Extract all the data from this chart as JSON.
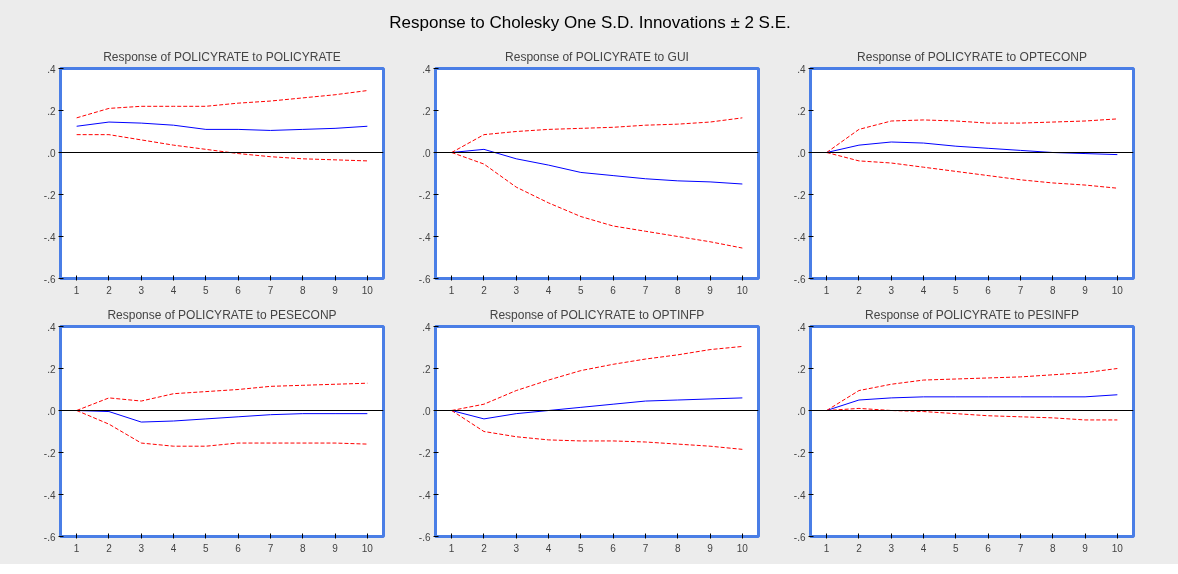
{
  "chart_data": [
    {
      "type": "line",
      "title": "Response of POLICYRATE to POLICYRATE",
      "annotations": [
        "Response to Cholesky One S.D. Innovations ± 2 S.E."
      ],
      "x": [
        1,
        2,
        3,
        4,
        5,
        6,
        7,
        8,
        9,
        10
      ],
      "xlim": [
        0.5,
        10.5
      ],
      "xticks": [
        1,
        2,
        3,
        4,
        5,
        6,
        7,
        8,
        9,
        10
      ],
      "ylim": [
        -0.6,
        0.4
      ],
      "yticks": [
        {
          "value": 0.4,
          "label": ".4"
        },
        {
          "value": 0.2,
          "label": ".2"
        },
        {
          "value": 0,
          "label": ".0"
        },
        {
          "value": -0.2,
          "label": "-.2"
        },
        {
          "value": -0.4,
          "label": "-.4"
        },
        {
          "value": -0.6,
          "label": "-.6"
        }
      ],
      "ref_lines": [
        {
          "axis": "y",
          "value": 0,
          "color": "#000000"
        }
      ],
      "series": [
        {
          "color": "#0000ff",
          "line_style": "solid",
          "values": [
            0.125,
            0.145,
            0.14,
            0.13,
            0.11,
            0.11,
            0.105,
            0.11,
            0.115,
            0.125
          ]
        },
        {
          "color": "#ff0000",
          "line_style": "dashed",
          "values": [
            0.165,
            0.21,
            0.22,
            0.22,
            0.22,
            0.235,
            0.245,
            0.26,
            0.275,
            0.295
          ]
        },
        {
          "color": "#ff0000",
          "line_style": "dashed",
          "values": [
            0.085,
            0.085,
            0.06,
            0.035,
            0.015,
            -0.005,
            -0.02,
            -0.03,
            -0.035,
            -0.04
          ]
        }
      ]
    },
    {
      "type": "line",
      "title": "Response of POLICYRATE to GUI",
      "x": [
        1,
        2,
        3,
        4,
        5,
        6,
        7,
        8,
        9,
        10
      ],
      "xlim": [
        0.5,
        10.5
      ],
      "xticks": [
        1,
        2,
        3,
        4,
        5,
        6,
        7,
        8,
        9,
        10
      ],
      "ylim": [
        -0.6,
        0.4
      ],
      "yticks": [
        {
          "value": 0.4,
          "label": ".4"
        },
        {
          "value": 0.2,
          "label": ".2"
        },
        {
          "value": 0,
          "label": ".0"
        },
        {
          "value": -0.2,
          "label": "-.2"
        },
        {
          "value": -0.4,
          "label": "-.4"
        },
        {
          "value": -0.6,
          "label": "-.6"
        }
      ],
      "ref_lines": [
        {
          "axis": "y",
          "value": 0,
          "color": "#000000"
        }
      ],
      "series": [
        {
          "color": "#0000ff",
          "line_style": "solid",
          "values": [
            0,
            0.015,
            -0.03,
            -0.06,
            -0.095,
            -0.11,
            -0.125,
            -0.135,
            -0.14,
            -0.15
          ]
        },
        {
          "color": "#ff0000",
          "line_style": "dashed",
          "values": [
            0,
            0.085,
            0.1,
            0.11,
            0.115,
            0.12,
            0.13,
            0.135,
            0.145,
            0.165
          ]
        },
        {
          "color": "#ff0000",
          "line_style": "dashed",
          "values": [
            0,
            -0.055,
            -0.165,
            -0.24,
            -0.305,
            -0.35,
            -0.375,
            -0.4,
            -0.425,
            -0.455
          ]
        }
      ]
    },
    {
      "type": "line",
      "title": "Response of POLICYRATE to OPTECONP",
      "x": [
        1,
        2,
        3,
        4,
        5,
        6,
        7,
        8,
        9,
        10
      ],
      "xlim": [
        0.5,
        10.5
      ],
      "xticks": [
        1,
        2,
        3,
        4,
        5,
        6,
        7,
        8,
        9,
        10
      ],
      "ylim": [
        -0.6,
        0.4
      ],
      "yticks": [
        {
          "value": 0.4,
          "label": ".4"
        },
        {
          "value": 0.2,
          "label": ".2"
        },
        {
          "value": 0,
          "label": ".0"
        },
        {
          "value": -0.2,
          "label": "-.2"
        },
        {
          "value": -0.4,
          "label": "-.4"
        },
        {
          "value": -0.6,
          "label": "-.6"
        }
      ],
      "ref_lines": [
        {
          "axis": "y",
          "value": 0,
          "color": "#000000"
        }
      ],
      "series": [
        {
          "color": "#0000ff",
          "line_style": "solid",
          "values": [
            0,
            0.035,
            0.05,
            0.045,
            0.03,
            0.02,
            0.01,
            0,
            -0.005,
            -0.01
          ]
        },
        {
          "color": "#ff0000",
          "line_style": "dashed",
          "values": [
            0,
            0.11,
            0.15,
            0.155,
            0.15,
            0.14,
            0.14,
            0.145,
            0.15,
            0.16
          ]
        },
        {
          "color": "#ff0000",
          "line_style": "dashed",
          "values": [
            0,
            -0.04,
            -0.05,
            -0.07,
            -0.09,
            -0.11,
            -0.13,
            -0.145,
            -0.155,
            -0.17
          ]
        }
      ]
    },
    {
      "type": "line",
      "title": "Response of POLICYRATE to PESECONP",
      "x": [
        1,
        2,
        3,
        4,
        5,
        6,
        7,
        8,
        9,
        10
      ],
      "xlim": [
        0.5,
        10.5
      ],
      "xticks": [
        1,
        2,
        3,
        4,
        5,
        6,
        7,
        8,
        9,
        10
      ],
      "ylim": [
        -0.6,
        0.4
      ],
      "yticks": [
        {
          "value": 0.4,
          "label": ".4"
        },
        {
          "value": 0.2,
          "label": ".2"
        },
        {
          "value": 0,
          "label": ".0"
        },
        {
          "value": -0.2,
          "label": "-.2"
        },
        {
          "value": -0.4,
          "label": "-.4"
        },
        {
          "value": -0.6,
          "label": "-.6"
        }
      ],
      "ref_lines": [
        {
          "axis": "y",
          "value": 0,
          "color": "#000000"
        }
      ],
      "series": [
        {
          "color": "#0000ff",
          "line_style": "solid",
          "values": [
            0,
            -0.005,
            -0.055,
            -0.05,
            -0.04,
            -0.03,
            -0.02,
            -0.015,
            -0.015,
            -0.015
          ]
        },
        {
          "color": "#ff0000",
          "line_style": "dashed",
          "values": [
            0,
            0.06,
            0.045,
            0.08,
            0.09,
            0.1,
            0.115,
            0.12,
            0.125,
            0.13
          ]
        },
        {
          "color": "#ff0000",
          "line_style": "dashed",
          "values": [
            0,
            -0.065,
            -0.155,
            -0.17,
            -0.17,
            -0.155,
            -0.155,
            -0.155,
            -0.155,
            -0.16
          ]
        }
      ]
    },
    {
      "type": "line",
      "title": "Response of POLICYRATE to OPTINFP",
      "x": [
        1,
        2,
        3,
        4,
        5,
        6,
        7,
        8,
        9,
        10
      ],
      "xlim": [
        0.5,
        10.5
      ],
      "xticks": [
        1,
        2,
        3,
        4,
        5,
        6,
        7,
        8,
        9,
        10
      ],
      "ylim": [
        -0.6,
        0.4
      ],
      "yticks": [
        {
          "value": 0.4,
          "label": ".4"
        },
        {
          "value": 0.2,
          "label": ".2"
        },
        {
          "value": 0,
          "label": ".0"
        },
        {
          "value": -0.2,
          "label": "-.2"
        },
        {
          "value": -0.4,
          "label": "-.4"
        },
        {
          "value": -0.6,
          "label": "-.6"
        }
      ],
      "ref_lines": [
        {
          "axis": "y",
          "value": 0,
          "color": "#000000"
        }
      ],
      "series": [
        {
          "color": "#0000ff",
          "line_style": "solid",
          "values": [
            0,
            -0.04,
            -0.015,
            0,
            0.015,
            0.03,
            0.045,
            0.05,
            0.055,
            0.06
          ]
        },
        {
          "color": "#ff0000",
          "line_style": "dashed",
          "values": [
            0,
            0.03,
            0.095,
            0.145,
            0.19,
            0.22,
            0.245,
            0.265,
            0.29,
            0.305
          ]
        },
        {
          "color": "#ff0000",
          "line_style": "dashed",
          "values": [
            0,
            -0.1,
            -0.125,
            -0.14,
            -0.145,
            -0.145,
            -0.15,
            -0.16,
            -0.17,
            -0.185
          ]
        }
      ]
    },
    {
      "type": "line",
      "title": "Response of POLICYRATE to PESINFP",
      "x": [
        1,
        2,
        3,
        4,
        5,
        6,
        7,
        8,
        9,
        10
      ],
      "xlim": [
        0.5,
        10.5
      ],
      "xticks": [
        1,
        2,
        3,
        4,
        5,
        6,
        7,
        8,
        9,
        10
      ],
      "ylim": [
        -0.6,
        0.4
      ],
      "yticks": [
        {
          "value": 0.4,
          "label": ".4"
        },
        {
          "value": 0.2,
          "label": ".2"
        },
        {
          "value": 0,
          "label": ".0"
        },
        {
          "value": -0.2,
          "label": "-.2"
        },
        {
          "value": -0.4,
          "label": "-.4"
        },
        {
          "value": -0.6,
          "label": "-.6"
        }
      ],
      "ref_lines": [
        {
          "axis": "y",
          "value": 0,
          "color": "#000000"
        }
      ],
      "series": [
        {
          "color": "#0000ff",
          "line_style": "solid",
          "values": [
            0,
            0.05,
            0.06,
            0.065,
            0.065,
            0.065,
            0.065,
            0.065,
            0.065,
            0.075
          ]
        },
        {
          "color": "#ff0000",
          "line_style": "dashed",
          "values": [
            0,
            0.095,
            0.125,
            0.145,
            0.15,
            0.155,
            0.16,
            0.17,
            0.18,
            0.2
          ]
        },
        {
          "color": "#ff0000",
          "line_style": "dashed",
          "values": [
            0,
            0.01,
            0,
            -0.005,
            -0.015,
            -0.025,
            -0.03,
            -0.035,
            -0.045,
            -0.045
          ]
        }
      ]
    }
  ]
}
